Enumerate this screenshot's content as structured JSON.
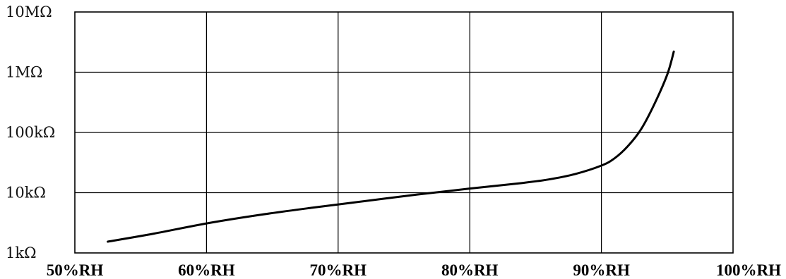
{
  "chart_data": {
    "type": "line",
    "x_tick_labels": [
      "50%RH",
      "60%RH",
      "70%RH",
      "80%RH",
      "90%RH",
      "100%RH"
    ],
    "y_tick_labels": [
      "1kΩ",
      "10kΩ",
      "100kΩ",
      "1MΩ",
      "10MΩ"
    ],
    "xlim": [
      50,
      100
    ],
    "ylim": [
      1000,
      10000000
    ],
    "y_scale": "log",
    "grid": true,
    "series": [
      {
        "x": [
          52.5,
          56,
          60,
          64,
          68,
          72,
          76,
          80,
          84,
          86,
          88,
          90,
          91,
          92,
          93,
          94,
          95,
          95.5
        ],
        "y": [
          1540,
          2090,
          3090,
          4270,
          5620,
          7240,
          9330,
          11700,
          14500,
          16600,
          20400,
          28200,
          37200,
          58900,
          112000,
          288000,
          912000,
          2200000
        ]
      }
    ]
  }
}
